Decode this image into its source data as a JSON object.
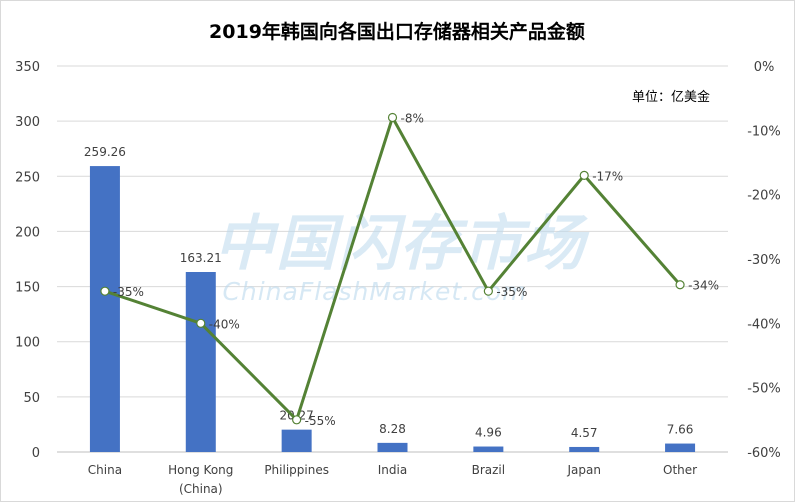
{
  "chart_data": {
    "type": "bar",
    "title": "2019年韩国向各国出口存储器相关产品金额",
    "unit_note": "单位：亿美金",
    "categories": [
      [
        "China"
      ],
      [
        "Hong Kong",
        "(China)"
      ],
      [
        "Philippines"
      ],
      [
        "India"
      ],
      [
        "Brazil"
      ],
      [
        "Japan"
      ],
      [
        "Other"
      ]
    ],
    "series": [
      {
        "type": "bar",
        "axis": "left",
        "color": "#4472c4",
        "values": [
          259.26,
          163.21,
          20.27,
          8.28,
          4.96,
          4.57,
          7.66
        ],
        "labels": [
          "259.26",
          "163.21",
          "20.27",
          "8.28",
          "4.96",
          "4.57",
          "7.66"
        ]
      },
      {
        "type": "line",
        "axis": "right",
        "color": "#548235",
        "values": [
          -35,
          -40,
          -55,
          -8,
          -35,
          -17,
          -34
        ],
        "labels": [
          "-35%",
          "-40%",
          "-55%",
          "-8%",
          "-35%",
          "-17%",
          "-34%"
        ]
      }
    ],
    "left_axis": {
      "min": 0,
      "max": 350,
      "ticks": [
        "0",
        "50",
        "100",
        "150",
        "200",
        "250",
        "300",
        "350"
      ]
    },
    "right_axis": {
      "min": -60,
      "max": 0,
      "ticks": [
        "-60%",
        "-50%",
        "-40%",
        "-30%",
        "-20%",
        "-10%",
        "0%"
      ]
    },
    "grid": true
  },
  "watermark": {
    "line1": "中国闪存市场",
    "line2": "ChinaFlashMarket.com"
  }
}
